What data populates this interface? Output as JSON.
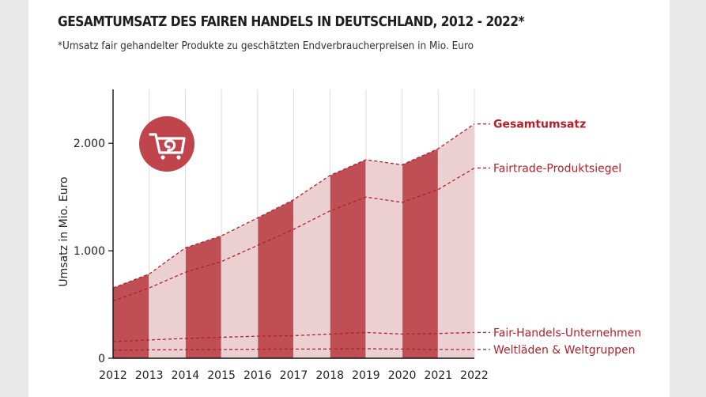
{
  "title": "GESAMTUMSATZ DES FAIREN HANDELS IN DEUTSCHLAND, 2012 - 2022*",
  "subtitle": "*Umsatz fair gehandelter Produkte zu geschätzten Endverbraucherpreisen in Mio. Euro",
  "icon": "shopping-cart-icon",
  "colors": {
    "dark_band": "#bf4f54",
    "light_band": "#ebcfd1",
    "line": "#b3202a",
    "icon_circle": "#c0444c"
  },
  "chart_data": {
    "type": "area",
    "title": "GESAMTUMSATZ DES FAIREN HANDELS IN DEUTSCHLAND, 2012 - 2022*",
    "ylabel": "Umsatz in Mio. Euro",
    "xlabel": "",
    "x": [
      "2012",
      "2013",
      "2014",
      "2015",
      "2016",
      "2017",
      "2018",
      "2019",
      "2020",
      "2021",
      "2022"
    ],
    "ylim": [
      0,
      2500
    ],
    "yticks": [
      0,
      1000,
      2000
    ],
    "ytick_labels": [
      "0",
      "1.000",
      "2.000"
    ],
    "grid": "vertical",
    "series": [
      {
        "name": "Gesamtumsatz",
        "values": [
          654,
          784,
          1027,
          1139,
          1306,
          1475,
          1700,
          1848,
          1800,
          1950,
          2180
        ]
      },
      {
        "name": "Fairtrade-Produktsiegel",
        "values": [
          533,
          654,
          800,
          900,
          1050,
          1200,
          1370,
          1500,
          1450,
          1570,
          1770
        ]
      },
      {
        "name": "Fair-Handels-Unternehmen",
        "values": [
          155,
          170,
          185,
          195,
          205,
          210,
          225,
          240,
          225,
          230,
          240
        ]
      },
      {
        "name": "Weltläden & Weltgruppen",
        "values": [
          75,
          78,
          80,
          82,
          84,
          85,
          86,
          88,
          85,
          82,
          82
        ]
      }
    ]
  }
}
